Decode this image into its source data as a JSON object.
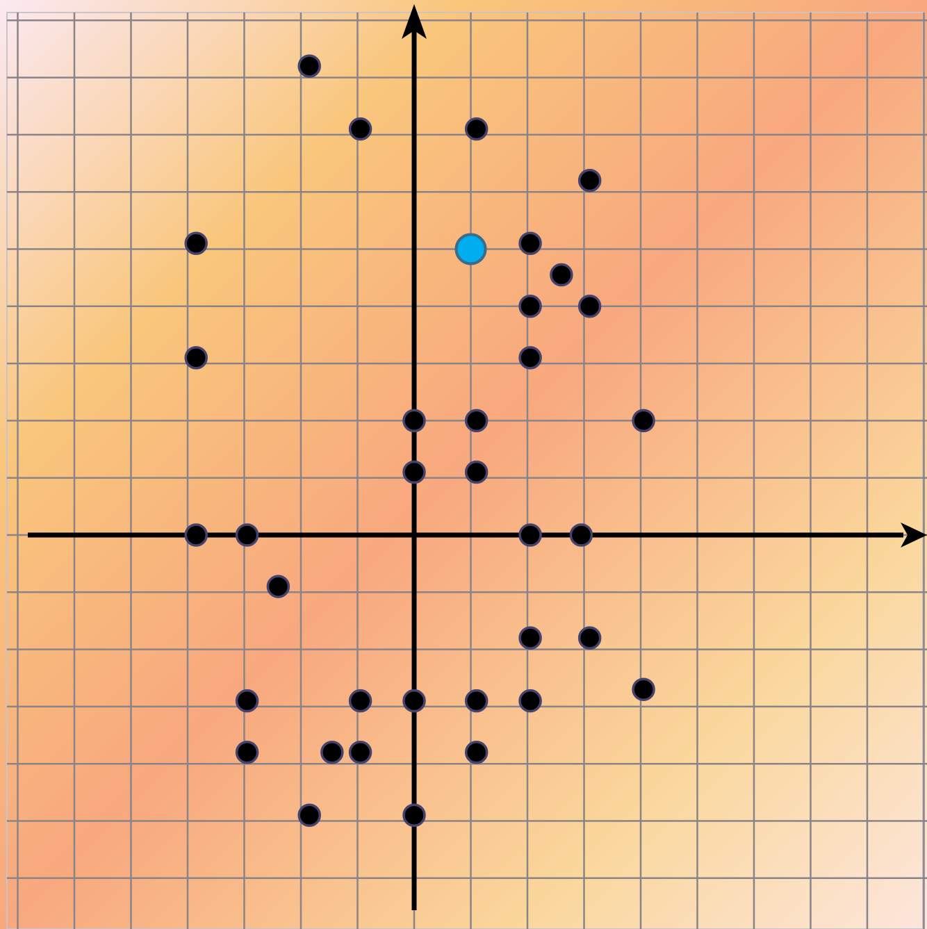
{
  "chart_data": {
    "type": "scatter",
    "title": "",
    "xlabel": "",
    "ylabel": "",
    "grid": true,
    "axes": "cartesian-arrows",
    "background": {
      "type": "diagonal-gradient",
      "colors": [
        "#fbe9f2",
        "#f9c67c",
        "#f8a87e",
        "#fad79c",
        "#fce6dc"
      ]
    },
    "grid_color": "#8a8388",
    "axis_color": "#000000",
    "xlim": [
      -7.25,
      9.0
    ],
    "ylim": [
      -7.0,
      9.25
    ],
    "series": [
      {
        "marker_color": "#000000",
        "marker_edge": "#45426b",
        "points": [
          {
            "x": -1.85,
            "y": 8.2
          },
          {
            "x": -0.95,
            "y": 7.1
          },
          {
            "x": 1.1,
            "y": 7.1
          },
          {
            "x": 3.1,
            "y": 6.2
          },
          {
            "x": -3.85,
            "y": 5.1
          },
          {
            "x": 2.05,
            "y": 5.1
          },
          {
            "x": 2.6,
            "y": 4.55
          },
          {
            "x": 2.05,
            "y": 4.0
          },
          {
            "x": 3.1,
            "y": 4.0
          },
          {
            "x": -3.85,
            "y": 3.1
          },
          {
            "x": 2.05,
            "y": 3.1
          },
          {
            "x": 0.0,
            "y": 2.0
          },
          {
            "x": 1.1,
            "y": 2.0
          },
          {
            "x": 4.05,
            "y": 2.0
          },
          {
            "x": 0.0,
            "y": 1.1
          },
          {
            "x": 1.1,
            "y": 1.1
          },
          {
            "x": -3.85,
            "y": 0.0
          },
          {
            "x": -2.95,
            "y": 0.0
          },
          {
            "x": 2.05,
            "y": 0.0
          },
          {
            "x": 2.95,
            "y": 0.0
          },
          {
            "x": -2.4,
            "y": -0.9
          },
          {
            "x": 2.05,
            "y": -1.8
          },
          {
            "x": 3.1,
            "y": -1.8
          },
          {
            "x": 4.05,
            "y": -2.7
          },
          {
            "x": -2.95,
            "y": -2.9
          },
          {
            "x": -0.95,
            "y": -2.9
          },
          {
            "x": 0.0,
            "y": -2.9
          },
          {
            "x": 1.1,
            "y": -2.9
          },
          {
            "x": 2.05,
            "y": -2.9
          },
          {
            "x": -2.95,
            "y": -3.8
          },
          {
            "x": -1.45,
            "y": -3.8
          },
          {
            "x": -0.95,
            "y": -3.8
          },
          {
            "x": 1.1,
            "y": -3.8
          },
          {
            "x": -1.85,
            "y": -4.9
          },
          {
            "x": 0.0,
            "y": -4.9
          }
        ]
      },
      {
        "marker_color": "#00aeef",
        "marker_edge": "#3d6b8a",
        "points": [
          {
            "x": 1.0,
            "y": 5.0
          }
        ]
      }
    ]
  }
}
